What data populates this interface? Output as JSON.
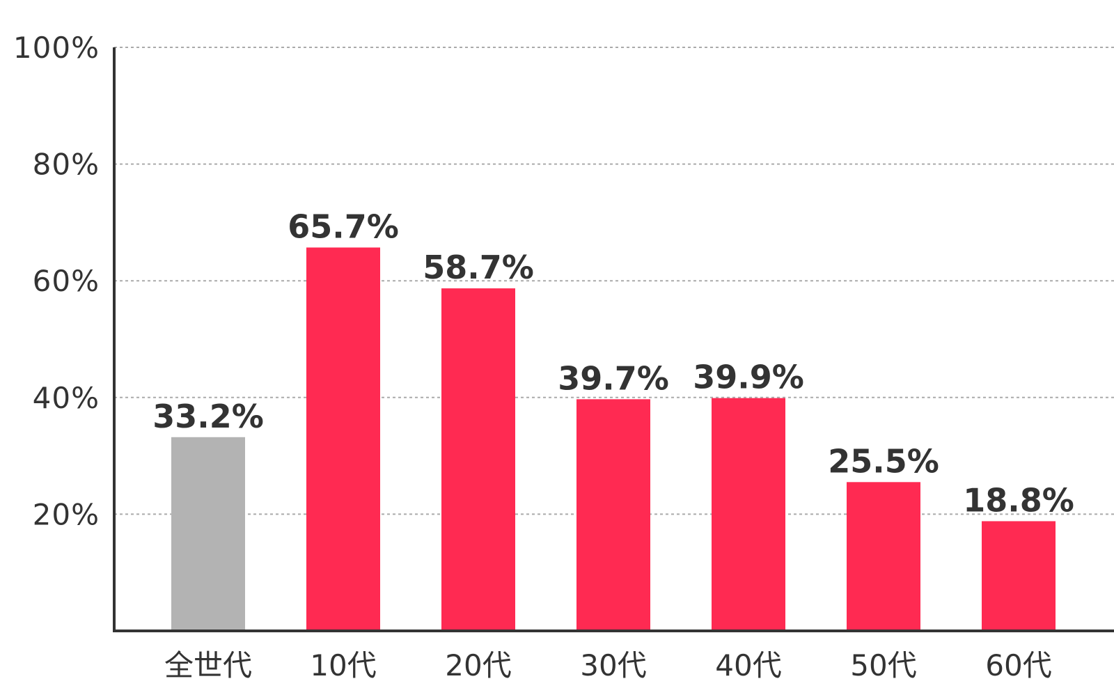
{
  "chart_data": {
    "type": "bar",
    "categories": [
      "全世代",
      "10代",
      "20代",
      "30代",
      "40代",
      "50代",
      "60代"
    ],
    "values": [
      33.2,
      65.7,
      58.7,
      39.7,
      39.9,
      25.5,
      18.8
    ],
    "value_labels": [
      "33.2%",
      "65.7%",
      "58.7%",
      "39.7%",
      "39.9%",
      "25.5%",
      "18.8%"
    ],
    "yticks": [
      "20%",
      "40%",
      "60%",
      "80%",
      "100%"
    ],
    "ytick_values": [
      20,
      40,
      60,
      80,
      100
    ],
    "ylim": [
      0,
      100
    ],
    "grid": true,
    "bar_colors": [
      "#b3b3b3",
      "#ff2a52",
      "#ff2a52",
      "#ff2a52",
      "#ff2a52",
      "#ff2a52",
      "#ff2a52"
    ],
    "title": "",
    "xlabel": "",
    "ylabel": ""
  }
}
